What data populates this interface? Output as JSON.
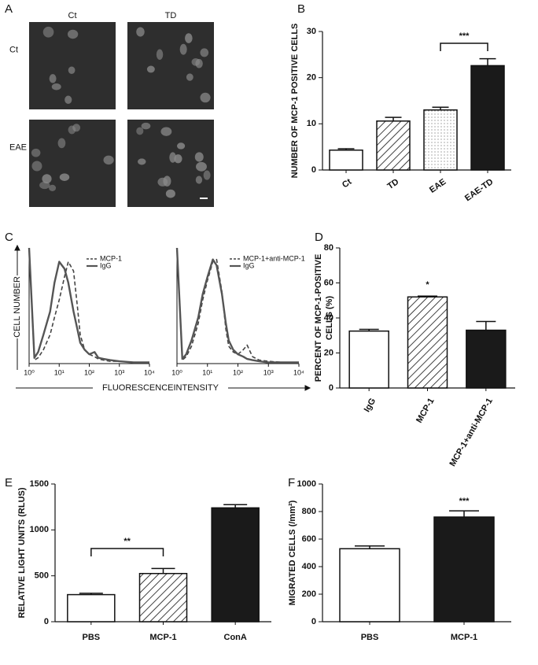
{
  "chart_data": [
    {
      "type": "image-grid",
      "panel": "A",
      "columns": [
        "Ct",
        "TD"
      ],
      "rows": [
        "Ct",
        "EAE"
      ]
    },
    {
      "type": "bar",
      "panel": "B",
      "ylabel": [
        "NUMBER OF MCP-1 POSITIVE CELLS"
      ],
      "categories": [
        "Ct",
        "TD",
        "EAE",
        "EAE-TD"
      ],
      "values": [
        4.3,
        10.6,
        13.0,
        22.6
      ],
      "errors": [
        0.3,
        0.8,
        0.6,
        1.5
      ],
      "patterns": [
        "none",
        "hatch",
        "dots",
        "solid"
      ],
      "ylim": [
        0,
        30
      ],
      "yticks": [
        0,
        10,
        20,
        30
      ],
      "annotations": [
        "***"
      ]
    },
    {
      "type": "line",
      "panel": "C",
      "xlabel": "FLUORESCENCEINTENSITY",
      "ylabel": "CELL NUMBER",
      "xscale": "log",
      "x": [
        1,
        1.5,
        2,
        3,
        5,
        7,
        10,
        15,
        20,
        30,
        40,
        50,
        70,
        100,
        150,
        200,
        300,
        500,
        1000,
        3000,
        10000
      ],
      "series": [
        {
          "name": "MCP-1",
          "color": "#444444",
          "dash": true,
          "values": [
            100,
            3,
            5,
            12,
            25,
            40,
            55,
            75,
            88,
            80,
            50,
            25,
            12,
            8,
            6,
            4,
            3,
            2,
            2,
            1,
            1
          ]
        },
        {
          "name": "IgG",
          "color": "#555555",
          "dash": false,
          "values": [
            100,
            5,
            10,
            25,
            45,
            70,
            88,
            82,
            70,
            45,
            30,
            18,
            12,
            8,
            10,
            5,
            4,
            3,
            2,
            1,
            1
          ]
        }
      ],
      "xlim": [
        1,
        10000
      ],
      "ylim": [
        0,
        100
      ],
      "xticks": [
        {
          "value": 1,
          "label": "10⁰"
        },
        {
          "value": 10,
          "label": "10¹"
        },
        {
          "value": 100,
          "label": "10²"
        },
        {
          "value": 1000,
          "label": "10³"
        },
        {
          "value": 10000,
          "label": "10⁴"
        }
      ]
    },
    {
      "type": "line",
      "xscale": "log",
      "x": [
        1,
        1.5,
        2,
        3,
        5,
        7,
        10,
        15,
        20,
        30,
        40,
        50,
        70,
        100,
        150,
        200,
        300,
        500,
        1000,
        3000,
        10000
      ],
      "series": [
        {
          "name": "MCP-1+anti-MCP-1",
          "color": "#444444",
          "dash": true,
          "values": [
            100,
            3,
            6,
            15,
            35,
            55,
            72,
            88,
            90,
            62,
            30,
            15,
            10,
            8,
            12,
            16,
            6,
            3,
            2,
            1,
            1
          ]
        },
        {
          "name": "IgG",
          "color": "#555555",
          "dash": false,
          "values": [
            100,
            4,
            8,
            20,
            40,
            60,
            75,
            90,
            85,
            60,
            35,
            20,
            12,
            8,
            6,
            4,
            3,
            2,
            1,
            1,
            1
          ]
        }
      ],
      "xlim": [
        1,
        10000
      ],
      "ylim": [
        0,
        100
      ],
      "xticks": [
        {
          "value": 1,
          "label": "10⁰"
        },
        {
          "value": 10,
          "label": "10¹"
        },
        {
          "value": 100,
          "label": "10²"
        },
        {
          "value": 1000,
          "label": "10³"
        },
        {
          "value": 10000,
          "label": "10⁴"
        }
      ]
    },
    {
      "type": "bar",
      "panel": "D",
      "ylabel": [
        "PERCENT OF MCP-1-POSITIVE",
        "CELLS (%)"
      ],
      "categories": [
        "IgG",
        "MCP-1",
        "MCP-1+anti-MCP-1"
      ],
      "values": [
        32.5,
        52,
        33
      ],
      "errors": [
        1,
        0.5,
        5
      ],
      "patterns": [
        "none",
        "hatch",
        "solid"
      ],
      "ylim": [
        0,
        80
      ],
      "yticks": [
        0,
        20,
        40,
        60,
        80
      ],
      "annotations": [
        "*"
      ]
    },
    {
      "type": "bar",
      "panel": "E",
      "ylabel": [
        "RELATIVE LIGHT UNITS (RLUS)"
      ],
      "categories": [
        "PBS",
        "MCP-1",
        "ConA"
      ],
      "values": [
        295,
        525,
        1240
      ],
      "errors": [
        15,
        55,
        35
      ],
      "patterns": [
        "none",
        "hatch",
        "solid"
      ],
      "ylim": [
        0,
        1500
      ],
      "yticks": [
        0,
        500,
        1000,
        1500
      ],
      "annotations": [
        "**"
      ]
    },
    {
      "type": "bar",
      "panel": "F",
      "ylabel": [
        "MIGRATED CELLS (/mm²)"
      ],
      "categories": [
        "PBS",
        "MCP-1"
      ],
      "values": [
        530,
        760
      ],
      "errors": [
        20,
        45
      ],
      "patterns": [
        "none",
        "solid"
      ],
      "ylim": [
        0,
        1000
      ],
      "yticks": [
        0,
        200,
        400,
        600,
        800,
        1000
      ],
      "annotations": [
        "***"
      ]
    }
  ]
}
